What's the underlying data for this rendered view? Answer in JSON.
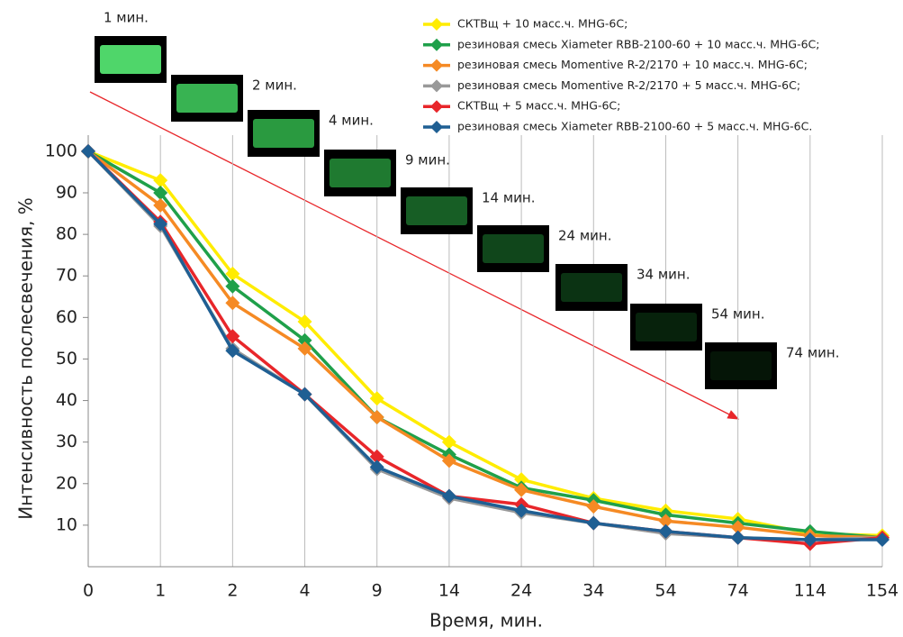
{
  "chart_data": {
    "type": "line",
    "y_label": "Интенсивность послесвечения, %",
    "x_label": "Время, мин.",
    "categories": [
      "0",
      "1",
      "2",
      "4",
      "9",
      "14",
      "24",
      "34",
      "54",
      "74",
      "114",
      "154"
    ],
    "ylim": [
      0,
      100
    ],
    "yticks": [
      10,
      20,
      30,
      40,
      50,
      60,
      70,
      80,
      90,
      100
    ],
    "grid": true,
    "legend": "top-right",
    "annotations": [
      "1 мин.",
      "2 мин.",
      "4 мин.",
      "9 мин.",
      "14 мин.",
      "24 мин.",
      "34 мин.",
      "54 мин.",
      "74 мин."
    ],
    "series": [
      {
        "name": "СКТВщ + 10 масс.ч. MHG-6C;",
        "color": "#ffec00",
        "values": [
          100,
          93,
          70.5,
          59,
          40.5,
          30,
          21,
          16.5,
          13.5,
          11.5,
          8,
          7.5
        ]
      },
      {
        "name": "резиновая смесь Xiameter RBB-2100-60 + 10 масс.ч. MHG-6C;",
        "color": "#1fa04a",
        "values": [
          100,
          90,
          67.5,
          54.5,
          36,
          27,
          19,
          16,
          12.5,
          10.5,
          8.5,
          7
        ]
      },
      {
        "name": "резиновая смесь Momentive R-2/2170 + 10 масс.ч. MHG-6C;",
        "color": "#f58a24",
        "values": [
          100,
          87,
          63.5,
          52.5,
          36,
          25.5,
          18.5,
          14.5,
          11,
          9.5,
          7.5,
          7
        ]
      },
      {
        "name": "резиновая смесь Momentive R-2/2170 + 5 масс.ч. MHG-6C;",
        "color": "#999999",
        "values": [
          100,
          82,
          52.5,
          41.5,
          23.5,
          16.5,
          13,
          10.5,
          8,
          7,
          6.5,
          7
        ]
      },
      {
        "name": "СКТВщ + 5 масс.ч. MHG-6C;",
        "color": "#e8262a",
        "values": [
          100,
          83,
          55.5,
          41.5,
          26.5,
          17,
          15,
          10.5,
          8.5,
          7,
          5.5,
          7
        ]
      },
      {
        "name": "резиновая смесь Xiameter RBB-2100-60 + 5 масс.ч. MHG-6C.",
        "color": "#1f5f93",
        "values": [
          100,
          82.5,
          52,
          41.5,
          24,
          17,
          13.5,
          10.5,
          8.5,
          7,
          6.5,
          6.5
        ]
      }
    ]
  }
}
